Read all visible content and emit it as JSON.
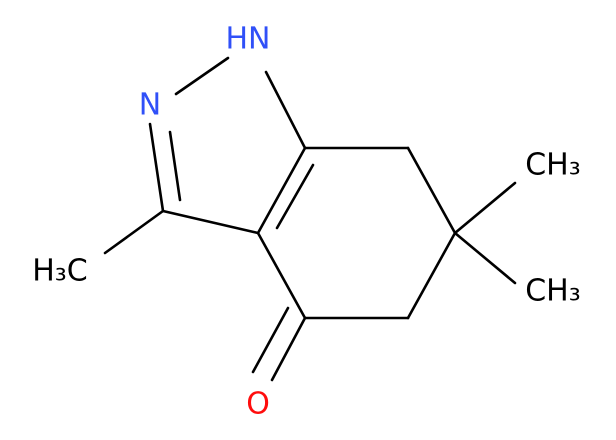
{
  "atoms": [
    {
      "label": "HN"
    },
    {
      "label": "N"
    },
    {
      "label": "O"
    },
    {
      "label": "H₃C"
    },
    {
      "label": "CH₃"
    },
    {
      "label": "CH₃"
    }
  ]
}
